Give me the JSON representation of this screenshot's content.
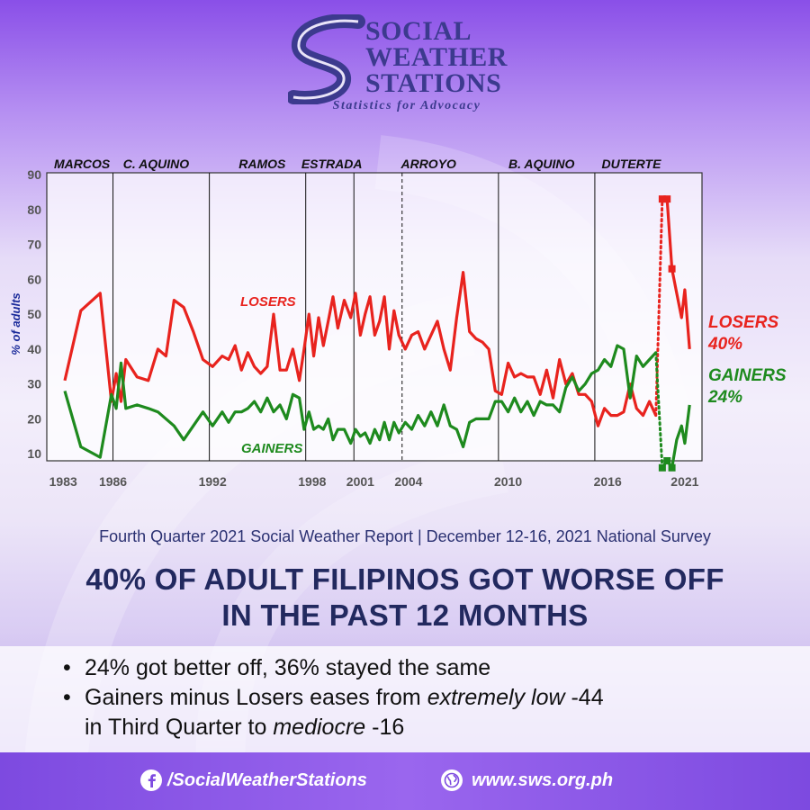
{
  "logo": {
    "line1": "SOCIAL",
    "line2": "WEATHER",
    "line3": "STATIONS",
    "tagline": "Statistics for Advocacy",
    "colors": {
      "text": "#3c3a8e",
      "mark": "#3c3a8e"
    }
  },
  "chart_data": {
    "type": "line",
    "ylabel": "% of adults",
    "xlabel": "",
    "ylim": [
      0,
      90
    ],
    "y_ticks": [
      10,
      20,
      30,
      40,
      50,
      60,
      70,
      80,
      90
    ],
    "x_ticks": [
      1983,
      1986,
      1992,
      1998,
      2001,
      2004,
      2010,
      2016,
      2021
    ],
    "xlim": [
      1983,
      2022
    ],
    "grid": false,
    "administrations": [
      {
        "name": "MARCOS",
        "start": 1983
      },
      {
        "name": "C. AQUINO",
        "start": 1986
      },
      {
        "name": "RAMOS",
        "start": 1992
      },
      {
        "name": "ESTRADA",
        "start": 1998
      },
      {
        "name": "ARROYO",
        "start": 2001
      },
      {
        "name": "B. AQUINO",
        "start": 2010
      },
      {
        "name": "DUTERTE",
        "start": 2016
      }
    ],
    "administration_dividers": [
      1986,
      1992,
      1998,
      2001,
      2010,
      2016
    ],
    "dashed_divider": 2004,
    "series": [
      {
        "name": "LOSERS",
        "color": "#e8231e",
        "end_label": "LOSERS",
        "end_value": "40%",
        "points": [
          [
            1983.0,
            31
          ],
          [
            1984.0,
            51
          ],
          [
            1985.2,
            56
          ],
          [
            1985.9,
            25
          ],
          [
            1986.2,
            33
          ],
          [
            1986.5,
            25
          ],
          [
            1986.8,
            37
          ],
          [
            1987.5,
            32
          ],
          [
            1988.2,
            31
          ],
          [
            1988.8,
            40
          ],
          [
            1989.3,
            38
          ],
          [
            1989.8,
            54
          ],
          [
            1990.4,
            52
          ],
          [
            1991.0,
            45
          ],
          [
            1991.6,
            37
          ],
          [
            1992.2,
            35
          ],
          [
            1992.8,
            38
          ],
          [
            1993.2,
            37
          ],
          [
            1993.6,
            41
          ],
          [
            1994.0,
            34
          ],
          [
            1994.4,
            39
          ],
          [
            1994.8,
            35
          ],
          [
            1995.2,
            33
          ],
          [
            1995.6,
            35
          ],
          [
            1996.0,
            50
          ],
          [
            1996.4,
            34
          ],
          [
            1996.8,
            34
          ],
          [
            1997.2,
            40
          ],
          [
            1997.6,
            31
          ],
          [
            1997.9,
            40
          ],
          [
            1998.2,
            50
          ],
          [
            1998.5,
            38
          ],
          [
            1998.8,
            49
          ],
          [
            1999.1,
            41
          ],
          [
            1999.4,
            48
          ],
          [
            1999.7,
            55
          ],
          [
            2000.0,
            46
          ],
          [
            2000.4,
            54
          ],
          [
            2000.8,
            49
          ],
          [
            2001.1,
            56
          ],
          [
            2001.4,
            44
          ],
          [
            2001.7,
            50
          ],
          [
            2002.0,
            55
          ],
          [
            2002.3,
            44
          ],
          [
            2002.6,
            48
          ],
          [
            2002.9,
            55
          ],
          [
            2003.2,
            40
          ],
          [
            2003.5,
            51
          ],
          [
            2003.8,
            44
          ],
          [
            2004.2,
            40
          ],
          [
            2004.6,
            44
          ],
          [
            2005.0,
            45
          ],
          [
            2005.4,
            40
          ],
          [
            2005.8,
            44
          ],
          [
            2006.2,
            48
          ],
          [
            2006.6,
            40
          ],
          [
            2007.0,
            34
          ],
          [
            2007.4,
            49
          ],
          [
            2007.8,
            62
          ],
          [
            2008.2,
            45
          ],
          [
            2008.6,
            43
          ],
          [
            2009.0,
            42
          ],
          [
            2009.4,
            40
          ],
          [
            2009.8,
            28
          ],
          [
            2010.2,
            27
          ],
          [
            2010.6,
            36
          ],
          [
            2011.0,
            32
          ],
          [
            2011.4,
            33
          ],
          [
            2011.8,
            32
          ],
          [
            2012.2,
            32
          ],
          [
            2012.6,
            27
          ],
          [
            2013.0,
            34
          ],
          [
            2013.4,
            26
          ],
          [
            2013.8,
            37
          ],
          [
            2014.2,
            30
          ],
          [
            2014.6,
            33
          ],
          [
            2015.0,
            27
          ],
          [
            2015.4,
            27
          ],
          [
            2015.8,
            25
          ],
          [
            2016.2,
            18
          ],
          [
            2016.6,
            23
          ],
          [
            2017.0,
            21
          ],
          [
            2017.4,
            21
          ],
          [
            2017.8,
            22
          ],
          [
            2018.2,
            30
          ],
          [
            2018.6,
            23
          ],
          [
            2019.0,
            21
          ],
          [
            2019.4,
            25
          ],
          [
            2019.8,
            21
          ],
          [
            2020.2,
            83
          ],
          [
            2020.5,
            83
          ],
          [
            2020.8,
            63
          ],
          [
            2021.1,
            56
          ],
          [
            2021.4,
            49
          ],
          [
            2021.6,
            57
          ],
          [
            2021.9,
            40
          ]
        ]
      },
      {
        "name": "GAINERS",
        "color": "#1e8a1e",
        "end_label": "GAINERS",
        "end_value": "24%",
        "points": [
          [
            1983.0,
            28
          ],
          [
            1984.0,
            12
          ],
          [
            1985.2,
            9
          ],
          [
            1985.9,
            27
          ],
          [
            1986.2,
            23
          ],
          [
            1986.5,
            36
          ],
          [
            1986.8,
            23
          ],
          [
            1987.5,
            24
          ],
          [
            1988.2,
            23
          ],
          [
            1988.8,
            22
          ],
          [
            1989.3,
            20
          ],
          [
            1989.8,
            18
          ],
          [
            1990.4,
            14
          ],
          [
            1991.0,
            18
          ],
          [
            1991.6,
            22
          ],
          [
            1992.2,
            18
          ],
          [
            1992.8,
            22
          ],
          [
            1993.2,
            19
          ],
          [
            1993.6,
            22
          ],
          [
            1994.0,
            22
          ],
          [
            1994.4,
            23
          ],
          [
            1994.8,
            25
          ],
          [
            1995.2,
            22
          ],
          [
            1995.6,
            26
          ],
          [
            1996.0,
            22
          ],
          [
            1996.4,
            24
          ],
          [
            1996.8,
            20
          ],
          [
            1997.2,
            27
          ],
          [
            1997.6,
            26
          ],
          [
            1997.9,
            17
          ],
          [
            1998.2,
            22
          ],
          [
            1998.5,
            17
          ],
          [
            1998.8,
            18
          ],
          [
            1999.1,
            17
          ],
          [
            1999.4,
            20
          ],
          [
            1999.7,
            14
          ],
          [
            2000.0,
            17
          ],
          [
            2000.4,
            17
          ],
          [
            2000.8,
            13
          ],
          [
            2001.1,
            17
          ],
          [
            2001.4,
            15
          ],
          [
            2001.7,
            16
          ],
          [
            2002.0,
            13
          ],
          [
            2002.3,
            17
          ],
          [
            2002.6,
            14
          ],
          [
            2002.9,
            19
          ],
          [
            2003.2,
            14
          ],
          [
            2003.5,
            19
          ],
          [
            2003.8,
            16
          ],
          [
            2004.2,
            19
          ],
          [
            2004.6,
            17
          ],
          [
            2005.0,
            21
          ],
          [
            2005.4,
            18
          ],
          [
            2005.8,
            22
          ],
          [
            2006.2,
            18
          ],
          [
            2006.6,
            24
          ],
          [
            2007.0,
            18
          ],
          [
            2007.4,
            17
          ],
          [
            2007.8,
            12
          ],
          [
            2008.2,
            19
          ],
          [
            2008.6,
            20
          ],
          [
            2009.0,
            20
          ],
          [
            2009.4,
            20
          ],
          [
            2009.8,
            25
          ],
          [
            2010.2,
            25
          ],
          [
            2010.6,
            22
          ],
          [
            2011.0,
            26
          ],
          [
            2011.4,
            22
          ],
          [
            2011.8,
            25
          ],
          [
            2012.2,
            21
          ],
          [
            2012.6,
            25
          ],
          [
            2013.0,
            24
          ],
          [
            2013.4,
            24
          ],
          [
            2013.8,
            22
          ],
          [
            2014.2,
            29
          ],
          [
            2014.6,
            32
          ],
          [
            2015.0,
            28
          ],
          [
            2015.4,
            30
          ],
          [
            2015.8,
            33
          ],
          [
            2016.2,
            34
          ],
          [
            2016.6,
            37
          ],
          [
            2017.0,
            35
          ],
          [
            2017.4,
            41
          ],
          [
            2017.8,
            40
          ],
          [
            2018.2,
            26
          ],
          [
            2018.6,
            38
          ],
          [
            2019.0,
            35
          ],
          [
            2019.4,
            37
          ],
          [
            2019.8,
            39
          ],
          [
            2020.2,
            6
          ],
          [
            2020.5,
            8
          ],
          [
            2020.8,
            6
          ],
          [
            2021.1,
            14
          ],
          [
            2021.4,
            18
          ],
          [
            2021.6,
            13
          ],
          [
            2021.9,
            24
          ]
        ]
      }
    ],
    "annotations": [
      {
        "text": "LOSERS",
        "series": "LOSERS"
      },
      {
        "text": "GAINERS",
        "series": "GAINERS"
      }
    ]
  },
  "report": {
    "subtitle": "Fourth Quarter 2021 Social Weather Report | December 12-16, 2021 National Survey",
    "headline_line1": "40% OF ADULT FILIPINOS GOT WORSE OFF",
    "headline_line2": "IN THE PAST 12 MONTHS"
  },
  "bullets": {
    "b1": "24% got better off, 36% stayed the same",
    "b2_part1": "Gainers minus Losers eases from ",
    "b2_em1": "extremely low",
    "b2_part2": " -44",
    "b2_part3": "in Third Quarter to ",
    "b2_em2": "mediocre",
    "b2_part4": " -16"
  },
  "footer": {
    "facebook": "/SocialWeatherStations",
    "website": "www.sws.org.ph",
    "icons": {
      "facebook": "facebook-icon",
      "globe": "globe-icon"
    }
  }
}
